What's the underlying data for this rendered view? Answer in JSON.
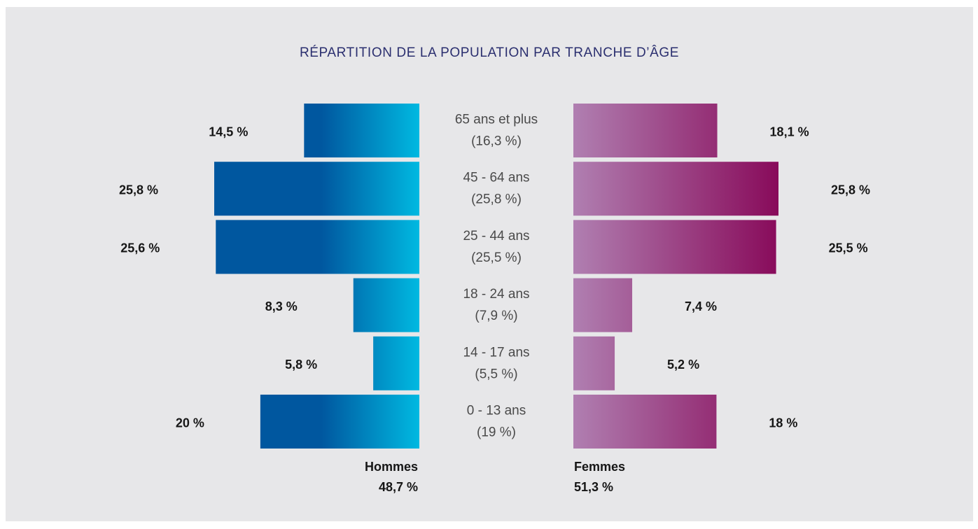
{
  "chart_data": {
    "type": "pyramid",
    "title": "RÉPARTITION DE LA POPULATION PAR TRANCHE D’ÂGE",
    "categories": [
      "65 ans et plus",
      "45 - 64 ans",
      "25 - 44 ans",
      "18 - 24 ans",
      "14 - 17 ans",
      "0 - 13 ans"
    ],
    "category_shares": [
      "(16,3 %)",
      "(25,8 %)",
      "(25,5 %)",
      "(7,9 %)",
      "(5,5 %)",
      "(19 %)"
    ],
    "series": [
      {
        "name": "Hommes",
        "total": "48,7 %",
        "side": "left",
        "color": [
          "#00579f",
          "#00b9e1"
        ],
        "values": [
          14.5,
          25.8,
          25.6,
          8.3,
          5.8,
          20
        ],
        "value_labels": [
          "14,5 %",
          "25,8 %",
          "25,6 %",
          "8,3 %",
          "5,8 %",
          "20 %"
        ]
      },
      {
        "name": "Femmes",
        "total": "51,3 %",
        "side": "right",
        "color": [
          "#b07fb1",
          "#880a5a"
        ],
        "values": [
          18.1,
          25.8,
          25.5,
          7.4,
          5.2,
          18
        ],
        "value_labels": [
          "18,1 %",
          "25,8 %",
          "25,5 %",
          "7,4 %",
          "5,2 %",
          "18 %"
        ]
      }
    ]
  }
}
